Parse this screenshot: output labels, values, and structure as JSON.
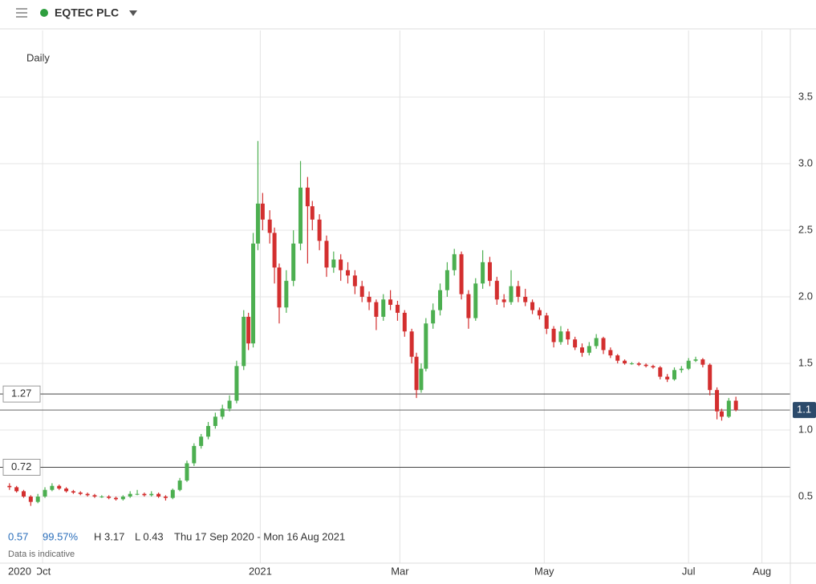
{
  "chart_data": {
    "type": "candlestick",
    "title": "EQTEC PLC",
    "interval": "Daily",
    "info": {
      "change": "0.57",
      "change_pct": "99.57%",
      "high": "H 3.17",
      "low": "L 0.43",
      "range": "Thu 17 Sep 2020 - Mon 16 Aug 2021"
    },
    "note": "Data is indicative",
    "x_start_label": "2020",
    "up_color": "#4caf50",
    "down_color": "#d32f2f",
    "xlim": [
      -4,
      330
    ],
    "xticks": [
      {
        "value": 14,
        "label": "Oct"
      },
      {
        "value": 106,
        "label": "2021"
      },
      {
        "value": 165,
        "label": "Mar"
      },
      {
        "value": 226,
        "label": "May"
      },
      {
        "value": 287,
        "label": "Jul"
      },
      {
        "value": 318,
        "label": "Aug"
      }
    ],
    "ylim": [
      0,
      4
    ],
    "yticks": [
      0.5,
      {
        "value": 1,
        "label": "1.0"
      },
      1.5,
      {
        "value": 2,
        "label": "2.0"
      },
      2.5,
      {
        "value": 3,
        "label": "3.0"
      },
      3.5
    ],
    "grid": true,
    "hlines": [
      1.27,
      0.72
    ],
    "price_line": {
      "value": 1.15,
      "label": "1.1"
    },
    "x": [
      0,
      3,
      6,
      9,
      12,
      15,
      18,
      21,
      24,
      27,
      30,
      33,
      36,
      39,
      42,
      45,
      48,
      51,
      54,
      57,
      60,
      63,
      66,
      69,
      72,
      75,
      78,
      81,
      84,
      87,
      90,
      93,
      96,
      99,
      101,
      103,
      105,
      107,
      110,
      112,
      114,
      117,
      120,
      123,
      126,
      128,
      131,
      134,
      137,
      140,
      143,
      146,
      149,
      152,
      155,
      158,
      161,
      164,
      167,
      170,
      172,
      174,
      176,
      179,
      182,
      185,
      188,
      191,
      194,
      197,
      200,
      203,
      206,
      209,
      212,
      215,
      218,
      221,
      224,
      227,
      230,
      233,
      236,
      239,
      242,
      245,
      248,
      251,
      254,
      257,
      260,
      263,
      266,
      269,
      272,
      275,
      278,
      281,
      284,
      287,
      290,
      293,
      296,
      299,
      301,
      304,
      307
    ],
    "open": [
      0.58,
      0.57,
      0.54,
      0.5,
      0.46,
      0.5,
      0.55,
      0.58,
      0.56,
      0.54,
      0.53,
      0.52,
      0.51,
      0.5,
      0.5,
      0.49,
      0.48,
      0.5,
      0.52,
      0.52,
      0.51,
      0.52,
      0.5,
      0.49,
      0.55,
      0.62,
      0.75,
      0.88,
      0.95,
      1.03,
      1.1,
      1.16,
      1.22,
      1.48,
      1.85,
      1.65,
      2.4,
      2.7,
      2.58,
      2.48,
      2.22,
      1.92,
      2.12,
      2.4,
      2.82,
      2.68,
      2.58,
      2.42,
      2.22,
      2.28,
      2.2,
      2.16,
      2.08,
      2.0,
      1.96,
      1.85,
      1.98,
      1.94,
      1.88,
      1.74,
      1.55,
      1.3,
      1.46,
      1.8,
      1.9,
      2.05,
      2.2,
      2.32,
      2.02,
      1.84,
      2.1,
      2.26,
      2.12,
      1.98,
      1.96,
      2.08,
      2.0,
      1.96,
      1.9,
      1.86,
      1.76,
      1.66,
      1.74,
      1.68,
      1.62,
      1.58,
      1.63,
      1.69,
      1.6,
      1.56,
      1.52,
      1.5,
      1.5,
      1.49,
      1.48,
      1.47,
      1.4,
      1.38,
      1.45,
      1.46,
      1.52,
      1.53,
      1.49,
      1.3,
      1.14,
      1.1,
      1.22
    ],
    "high": [
      0.6,
      0.58,
      0.55,
      0.51,
      0.52,
      0.57,
      0.6,
      0.59,
      0.57,
      0.55,
      0.54,
      0.53,
      0.52,
      0.51,
      0.51,
      0.5,
      0.51,
      0.54,
      0.55,
      0.53,
      0.54,
      0.53,
      0.51,
      0.56,
      0.64,
      0.77,
      0.9,
      0.97,
      1.06,
      1.13,
      1.19,
      1.26,
      1.52,
      1.9,
      1.88,
      2.48,
      3.17,
      2.78,
      2.65,
      2.52,
      2.25,
      2.2,
      2.5,
      3.02,
      2.9,
      2.72,
      2.62,
      2.46,
      2.34,
      2.32,
      2.26,
      2.2,
      2.12,
      2.04,
      1.98,
      2.02,
      2.05,
      1.97,
      1.9,
      1.76,
      1.58,
      1.5,
      1.84,
      1.95,
      2.1,
      2.26,
      2.36,
      2.34,
      2.05,
      2.14,
      2.35,
      2.3,
      2.15,
      2.02,
      2.2,
      2.12,
      2.06,
      1.98,
      1.92,
      1.88,
      1.78,
      1.78,
      1.76,
      1.7,
      1.65,
      1.66,
      1.72,
      1.7,
      1.62,
      1.57,
      1.53,
      1.51,
      1.51,
      1.5,
      1.49,
      1.48,
      1.42,
      1.47,
      1.48,
      1.54,
      1.55,
      1.54,
      1.5,
      1.32,
      1.16,
      1.24,
      1.25
    ],
    "low": [
      0.55,
      0.53,
      0.49,
      0.43,
      0.45,
      0.49,
      0.54,
      0.55,
      0.53,
      0.52,
      0.51,
      0.5,
      0.49,
      0.49,
      0.48,
      0.47,
      0.47,
      0.49,
      0.51,
      0.5,
      0.5,
      0.49,
      0.47,
      0.48,
      0.54,
      0.61,
      0.73,
      0.86,
      0.93,
      1.01,
      1.08,
      1.14,
      1.2,
      1.45,
      1.6,
      1.62,
      2.35,
      2.5,
      2.4,
      2.1,
      1.8,
      1.88,
      2.08,
      2.35,
      2.25,
      2.5,
      2.35,
      2.15,
      2.18,
      2.12,
      2.1,
      2.02,
      1.96,
      1.9,
      1.75,
      1.82,
      1.9,
      1.82,
      1.7,
      1.5,
      1.24,
      1.28,
      1.44,
      1.76,
      1.86,
      2.0,
      2.16,
      1.98,
      1.76,
      1.82,
      2.06,
      2.08,
      1.94,
      1.92,
      1.94,
      1.96,
      1.93,
      1.87,
      1.83,
      1.72,
      1.62,
      1.64,
      1.64,
      1.6,
      1.55,
      1.56,
      1.61,
      1.57,
      1.54,
      1.5,
      1.49,
      1.49,
      1.48,
      1.47,
      1.46,
      1.38,
      1.36,
      1.37,
      1.43,
      1.45,
      1.51,
      1.47,
      1.26,
      1.08,
      1.07,
      1.09,
      1.14
    ],
    "close": [
      0.57,
      0.54,
      0.5,
      0.46,
      0.5,
      0.55,
      0.58,
      0.56,
      0.54,
      0.53,
      0.52,
      0.51,
      0.5,
      0.5,
      0.49,
      0.48,
      0.5,
      0.52,
      0.52,
      0.51,
      0.52,
      0.5,
      0.49,
      0.55,
      0.62,
      0.75,
      0.88,
      0.95,
      1.03,
      1.1,
      1.16,
      1.22,
      1.48,
      1.85,
      1.65,
      2.4,
      2.7,
      2.58,
      2.48,
      2.22,
      1.92,
      2.12,
      2.4,
      2.82,
      2.68,
      2.58,
      2.42,
      2.22,
      2.28,
      2.2,
      2.16,
      2.08,
      2.0,
      1.96,
      1.85,
      1.98,
      1.94,
      1.88,
      1.74,
      1.55,
      1.3,
      1.46,
      1.8,
      1.9,
      2.05,
      2.2,
      2.32,
      2.02,
      1.84,
      2.1,
      2.26,
      2.12,
      1.98,
      1.96,
      2.08,
      2.0,
      1.96,
      1.9,
      1.86,
      1.76,
      1.66,
      1.74,
      1.68,
      1.62,
      1.58,
      1.63,
      1.69,
      1.6,
      1.56,
      1.52,
      1.5,
      1.5,
      1.49,
      1.48,
      1.47,
      1.4,
      1.38,
      1.45,
      1.46,
      1.52,
      1.53,
      1.49,
      1.3,
      1.14,
      1.1,
      1.22,
      1.15
    ]
  }
}
